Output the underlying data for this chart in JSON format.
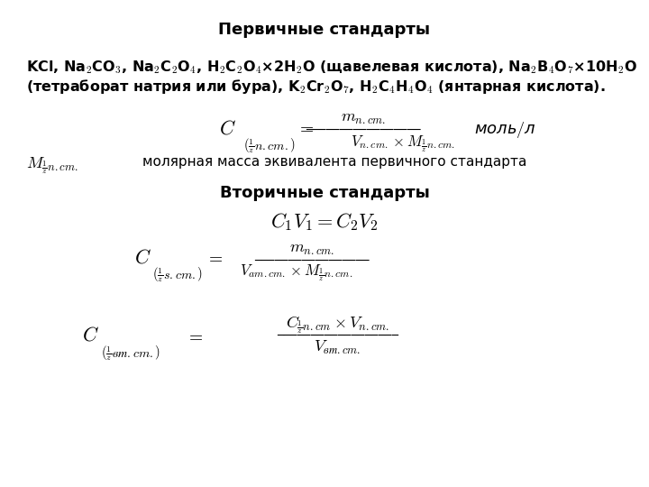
{
  "title": "Первичные стандарты",
  "subtitle": "Вторичные стандарты",
  "bg_color": "#ffffff",
  "text_color": "#000000",
  "figsize": [
    7.2,
    5.4
  ],
  "dpi": 100,
  "line1": "KCl, Na$_2$CO$_3$, Na$_2$C$_2$O$_4$, H$_2$C$_2$O$_4$×2H$_2$O (щавелевая кислота), Na$_2$B$_4$O$_7$×10H$_2$O",
  "line2": "(тетраборат натрия или бура), K$_2$Cr$_2$O$_7$, H$_2$C$_4$H$_4$O$_4$ (янтарная кислота).",
  "molar_label": "молярная масса эквивалента первичного стандарта"
}
